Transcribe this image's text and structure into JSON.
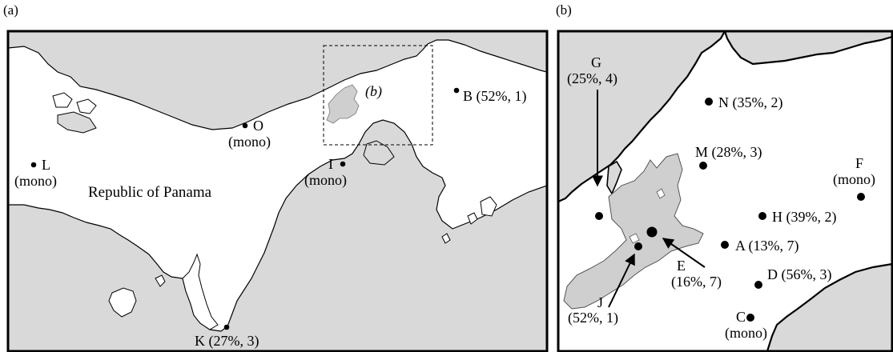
{
  "panels": {
    "a": {
      "label": "(a)"
    },
    "b": {
      "label": "(b)"
    }
  },
  "map_a": {
    "country_label": "Republic of Panama",
    "inset_label": "(b)",
    "sites": [
      {
        "id": "L",
        "line1": "L",
        "line2": "(mono)"
      },
      {
        "id": "O",
        "line1": "O",
        "line2": "(mono)"
      },
      {
        "id": "I",
        "line1": "I",
        "line2": "(mono)"
      },
      {
        "id": "B",
        "line1": "B (52%, 1)"
      },
      {
        "id": "K",
        "line1": "K (27%, 3)"
      }
    ]
  },
  "map_b": {
    "sites": [
      {
        "id": "G",
        "line1": "G",
        "line2": "(25%, 4)"
      },
      {
        "id": "N",
        "line1": "N (35%, 2)"
      },
      {
        "id": "M",
        "line1": "M (28%, 3)"
      },
      {
        "id": "F",
        "line1": "F",
        "line2": "(mono)"
      },
      {
        "id": "H",
        "line1": "H (39%, 2)"
      },
      {
        "id": "A",
        "line1": "A (13%, 7)"
      },
      {
        "id": "E",
        "line1": "E",
        "line2": "(16%, 7)"
      },
      {
        "id": "D",
        "line1": "D (56%, 3)"
      },
      {
        "id": "J",
        "line1": "J",
        "line2": "(52%, 1)"
      },
      {
        "id": "C",
        "line1": "C",
        "line2": "(mono)"
      }
    ]
  },
  "colors": {
    "sea": "#d9d9d9",
    "land": "#ffffff",
    "lake": "#cfcfcf",
    "outline": "#000000"
  }
}
